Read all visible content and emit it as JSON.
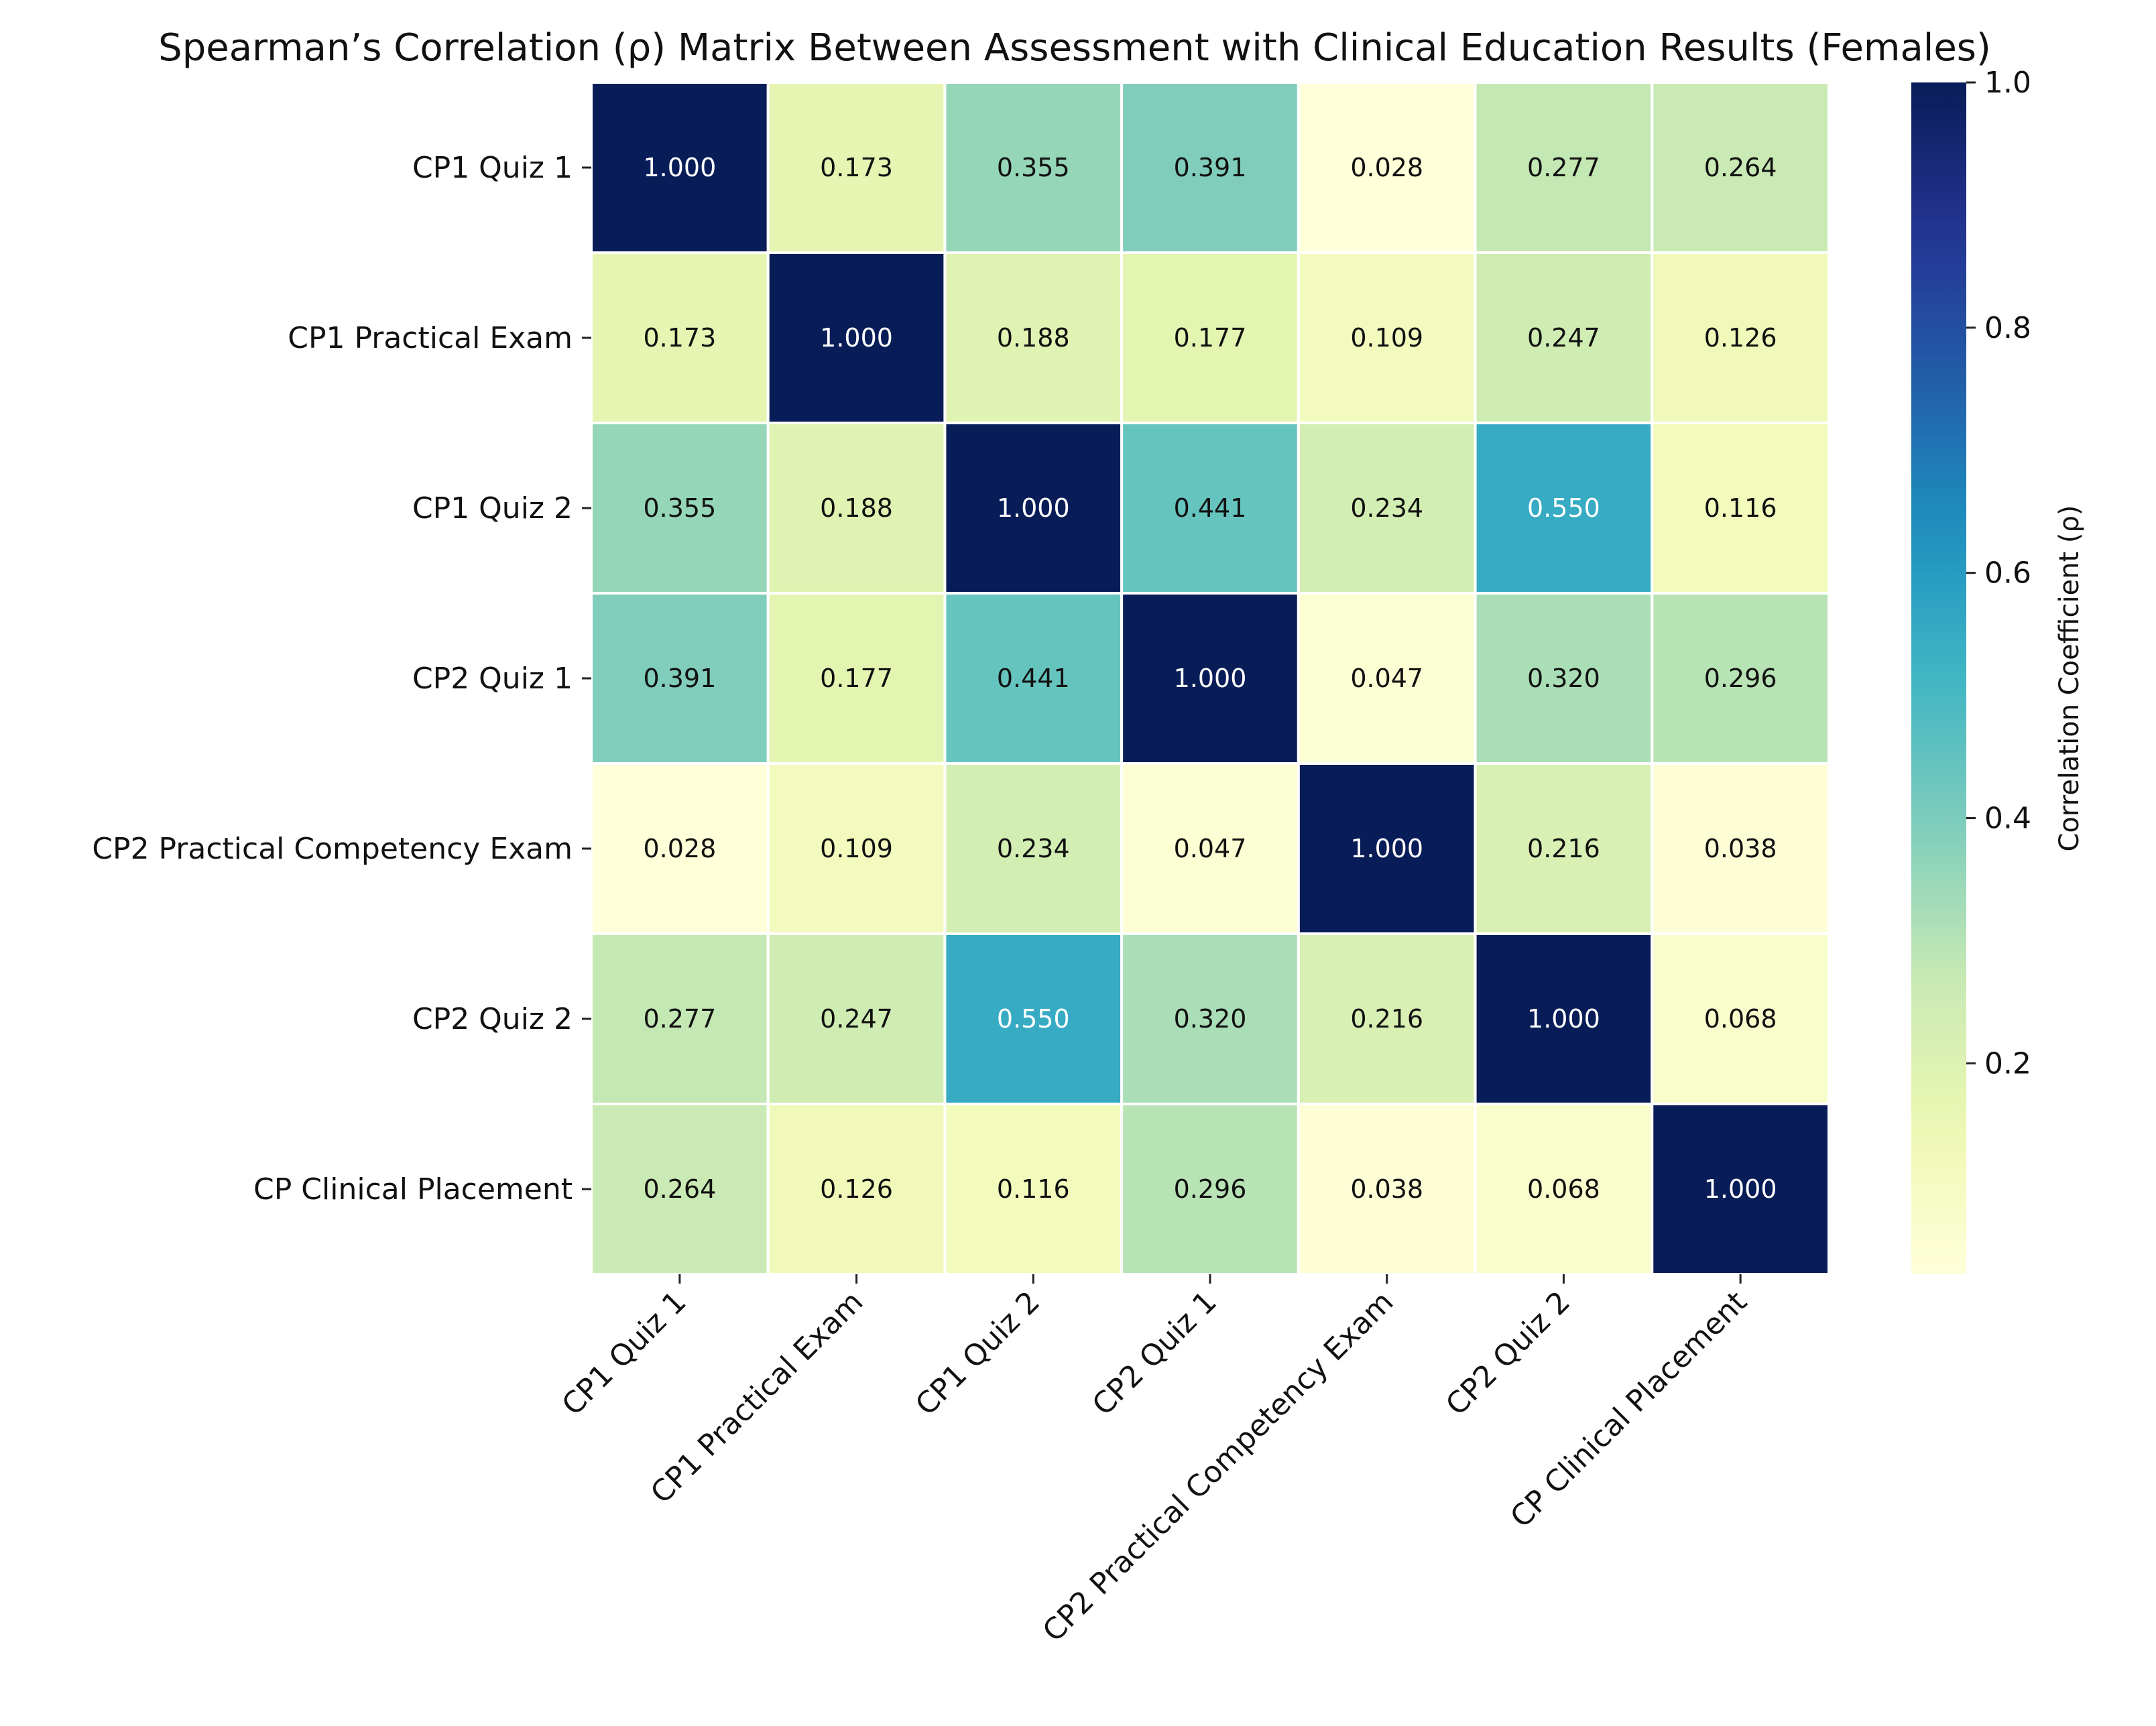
{
  "chart_data": {
    "type": "heatmap",
    "title": "Spearman’s Correlation (ρ) Matrix Between Assessment with Clinical Education Results (Females)",
    "xlabel": "",
    "ylabel": "",
    "categories": [
      "CP1 Quiz 1",
      "CP1 Practical Exam",
      "CP1 Quiz 2",
      "CP2 Quiz 1",
      "CP2 Practical Competency Exam",
      "CP2 Quiz 2",
      "CP Clinical Placement"
    ],
    "values": [
      [
        1.0,
        0.173,
        0.355,
        0.391,
        0.028,
        0.277,
        0.264
      ],
      [
        0.173,
        1.0,
        0.188,
        0.177,
        0.109,
        0.247,
        0.126
      ],
      [
        0.355,
        0.188,
        1.0,
        0.441,
        0.234,
        0.55,
        0.116
      ],
      [
        0.391,
        0.177,
        0.441,
        1.0,
        0.047,
        0.32,
        0.296
      ],
      [
        0.028,
        0.109,
        0.234,
        0.047,
        1.0,
        0.216,
        0.038
      ],
      [
        0.277,
        0.247,
        0.55,
        0.32,
        0.216,
        1.0,
        0.068
      ],
      [
        0.264,
        0.126,
        0.116,
        0.296,
        0.038,
        0.068,
        1.0
      ]
    ],
    "colorbar": {
      "label": "Correlation Coefficient (ρ)",
      "range": [
        0.028,
        1.0
      ],
      "ticks": [
        0.2,
        0.4,
        0.6,
        0.8,
        1.0
      ],
      "tick_labels": [
        "0.2",
        "0.4",
        "0.6",
        "0.8",
        "1.0"
      ],
      "colormap": "YlGnBu",
      "placement": "right"
    },
    "grid": false,
    "cell_border_color": "#ffffff"
  }
}
